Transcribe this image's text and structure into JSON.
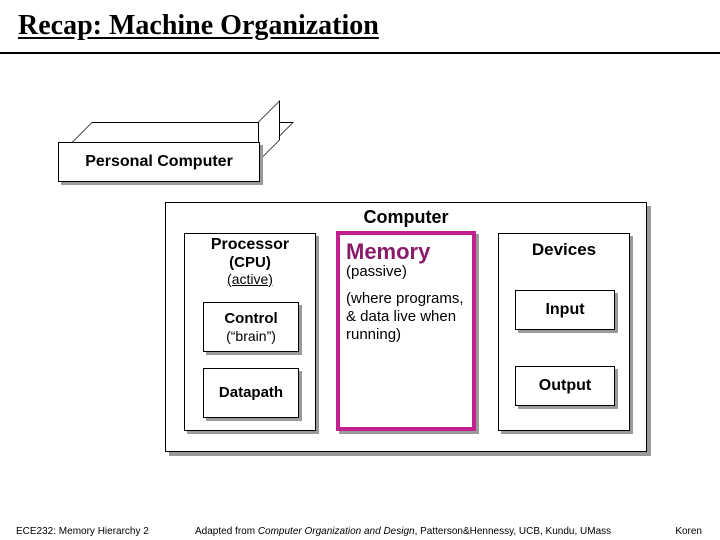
{
  "title": "Recap: Machine Organization",
  "pc_label": "Personal Computer",
  "computer": {
    "title": "Computer",
    "processor": {
      "title": "Processor",
      "sub1": "(CPU)",
      "sub2": "(active)",
      "control": {
        "title": "Control",
        "sub": "(“brain”)"
      },
      "datapath": "Datapath"
    },
    "memory": {
      "title": "Memory",
      "sub": "(passive)",
      "desc": "(where programs, & data live when running)",
      "border_color": "#c02090",
      "title_color": "#8a1a6a"
    },
    "devices": {
      "title": "Devices",
      "input": "Input",
      "output": "Output"
    }
  },
  "footer": {
    "left": "ECE232: Memory Hierarchy 2",
    "mid_prefix": "Adapted from ",
    "mid_italic": "Computer Organization and Design",
    "mid_suffix": ", Patterson&Hennessy, UCB, Kundu, UMass",
    "right": "Koren"
  },
  "colors": {
    "shadow": "#9a9a9a",
    "background": "#ffffff"
  }
}
